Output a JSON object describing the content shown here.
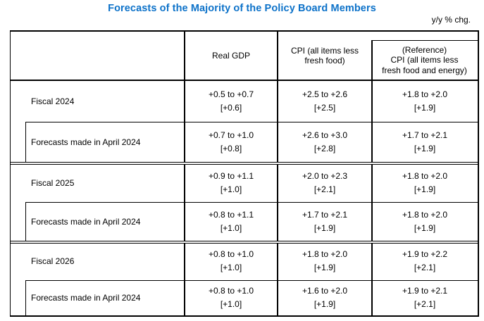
{
  "title": "Forecasts of the Majority of the Policy Board Members",
  "unit_note": "y/y % chg.",
  "accent_color": "#0d72c9",
  "table": {
    "columns": {
      "gdp": "Real GDP",
      "cpi": "CPI (all items less\nfresh food)",
      "ref": "(Reference)\nCPI (all items less\nfresh food and energy)"
    },
    "rows": [
      {
        "label": "Fiscal 2024",
        "indent": false,
        "cells": [
          {
            "range": "+0.5 to +0.7",
            "median": "[+0.6]"
          },
          {
            "range": "+2.5 to +2.6",
            "median": "[+2.5]"
          },
          {
            "range": "+1.8 to +2.0",
            "median": "[+1.9]"
          }
        ]
      },
      {
        "label": "Forecasts made in April 2024",
        "indent": true,
        "cells": [
          {
            "range": "+0.7 to +1.0",
            "median": "[+0.8]"
          },
          {
            "range": "+2.6 to +3.0",
            "median": "[+2.8]"
          },
          {
            "range": "+1.7 to +2.1",
            "median": "[+1.9]"
          }
        ]
      },
      {
        "label": "Fiscal 2025",
        "indent": false,
        "cells": [
          {
            "range": "+0.9 to +1.1",
            "median": "[+1.0]"
          },
          {
            "range": "+2.0 to +2.3",
            "median": "[+2.1]"
          },
          {
            "range": "+1.8 to +2.0",
            "median": "[+1.9]"
          }
        ]
      },
      {
        "label": "Forecasts made in April 2024",
        "indent": true,
        "cells": [
          {
            "range": "+0.8 to +1.1",
            "median": "[+1.0]"
          },
          {
            "range": "+1.7 to +2.1",
            "median": "[+1.9]"
          },
          {
            "range": "+1.8 to +2.0",
            "median": "[+1.9]"
          }
        ]
      },
      {
        "label": "Fiscal 2026",
        "indent": false,
        "cells": [
          {
            "range": "+0.8 to +1.0",
            "median": "[+1.0]"
          },
          {
            "range": "+1.8 to +2.0",
            "median": "[+1.9]"
          },
          {
            "range": "+1.9 to +2.2",
            "median": "[+2.1]"
          }
        ]
      },
      {
        "label": "Forecasts made in April 2024",
        "indent": true,
        "cells": [
          {
            "range": "+0.8 to +1.0",
            "median": "[+1.0]"
          },
          {
            "range": "+1.6 to +2.0",
            "median": "[+1.9]"
          },
          {
            "range": "+1.9 to +2.1",
            "median": "[+2.1]"
          }
        ]
      }
    ]
  }
}
